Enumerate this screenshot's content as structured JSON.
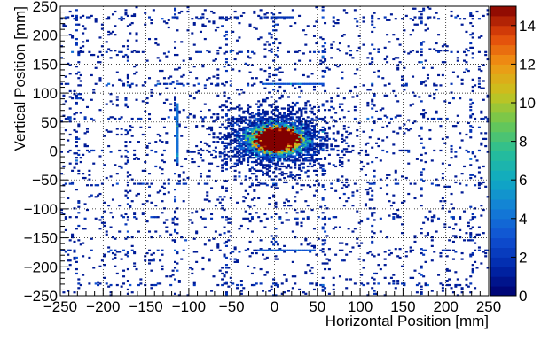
{
  "chart_data": {
    "type": "heatmap",
    "title": "",
    "xlabel": "Horizontal Position [mm]",
    "ylabel": "Vertical Position [mm]",
    "xlim": [
      -250,
      250
    ],
    "ylim": [
      -250,
      250
    ],
    "x_ticks": [
      -250,
      -200,
      -150,
      -100,
      -50,
      0,
      50,
      100,
      150,
      200,
      250
    ],
    "y_ticks": [
      -250,
      -200,
      -150,
      -100,
      -50,
      0,
      50,
      100,
      150,
      200,
      250
    ],
    "x_tick_labels": [
      "−250",
      "−200",
      "−150",
      "−100",
      "−50",
      "0",
      "50",
      "100",
      "150",
      "200",
      "250"
    ],
    "y_tick_labels": [
      "−250",
      "−200",
      "−150",
      "−100",
      "−50",
      "0",
      "50",
      "100",
      "150",
      "200",
      "250"
    ],
    "grid": true,
    "colorbar": {
      "range": [
        0,
        15
      ],
      "ticks": [
        0,
        2,
        4,
        6,
        8,
        10,
        12,
        14
      ],
      "tick_labels": [
        "0",
        "2",
        "4",
        "6",
        "8",
        "10",
        "12",
        "14"
      ],
      "colormap": "kBird-like (dark blue → cyan → green → yellow → orange → dark red)"
    },
    "distribution": {
      "core_center": [
        2,
        20
      ],
      "core_peak_value": 15,
      "core_spread_mm": [
        15,
        12
      ],
      "halo_spread_mm": [
        32,
        27
      ],
      "background": "sparse uniform hits over full range, value ~1",
      "hot_lines": [
        {
          "orientation": "horizontal",
          "y": 115,
          "x_range": [
            -15,
            55
          ],
          "value": 3
        },
        {
          "orientation": "horizontal",
          "y": -172,
          "x_range": [
            -20,
            45
          ],
          "value": 3
        },
        {
          "orientation": "horizontal",
          "y": 230,
          "x_range": [
            -5,
            20
          ],
          "value": 2
        },
        {
          "orientation": "vertical",
          "x": -115,
          "y_range": [
            -20,
            80
          ],
          "value": 4
        }
      ],
      "grid_line_hit_rows_y": [
        230,
        172,
        115,
        57,
        0,
        -57,
        -115,
        -172,
        -230
      ],
      "grid_line_hit_cols_x": [
        -230,
        -172,
        -115,
        -57,
        0,
        57,
        115,
        172,
        230
      ]
    }
  }
}
